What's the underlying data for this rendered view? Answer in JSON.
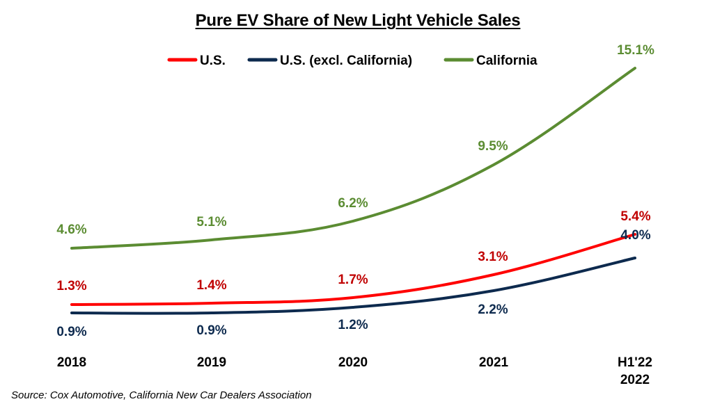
{
  "chart_data": {
    "type": "line",
    "title": "Pure EV Share of New Light Vehicle Sales",
    "categories": [
      "2018",
      "2019",
      "2020",
      "2021",
      "H1'22\n2022"
    ],
    "series": [
      {
        "name": "U.S.",
        "color": "#ff0000",
        "label_color": "#c00000",
        "values": [
          1.3,
          1.4,
          1.7,
          3.1,
          5.4
        ],
        "labels": [
          "1.3%",
          "1.4%",
          "1.7%",
          "3.1%",
          "5.4%"
        ]
      },
      {
        "name": "U.S. (excl. California)",
        "color": "#0d2a4e",
        "label_color": "#0d2a4e",
        "values": [
          0.9,
          0.9,
          1.2,
          2.2,
          4.0
        ],
        "labels": [
          "0.9%",
          "0.9%",
          "1.2%",
          "2.2%",
          "4.0%"
        ]
      },
      {
        "name": "California",
        "color": "#5b8c32",
        "label_color": "#5b8c32",
        "values": [
          4.6,
          5.1,
          6.2,
          9.5,
          15.1
        ],
        "labels": [
          "4.6%",
          "5.1%",
          "6.2%",
          "9.5%",
          "15.1%"
        ]
      }
    ],
    "ylim": [
      0,
      15.1
    ],
    "xlabel": "",
    "ylabel": "",
    "grid": false,
    "legend": "top"
  },
  "source": "Source: Cox Automotive, California New Car Dealers Association"
}
